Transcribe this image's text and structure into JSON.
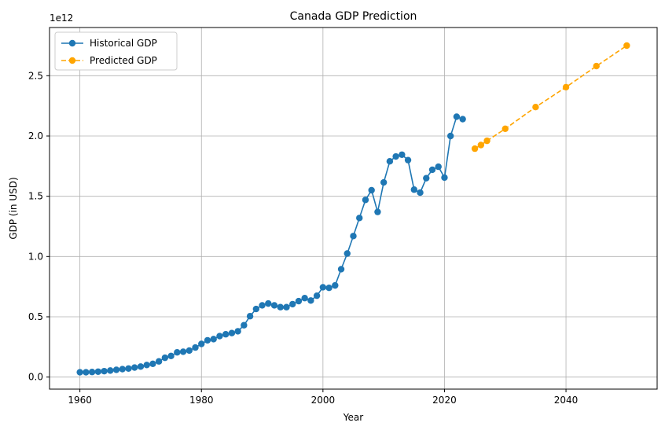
{
  "chart_data": {
    "type": "line",
    "title": "Canada GDP Prediction",
    "xlabel": "Year",
    "ylabel": "GDP (in USD)",
    "offset_label": "1e12",
    "xlim": [
      1955,
      2055
    ],
    "ylim": [
      -0.1,
      2.9
    ],
    "x_ticks": [
      1960,
      1980,
      2000,
      2020,
      2040
    ],
    "y_ticks": [
      0.0,
      0.5,
      1.0,
      1.5,
      2.0,
      2.5
    ],
    "y_tick_labels": [
      "0.0",
      "0.5",
      "1.0",
      "1.5",
      "2.0",
      "2.5"
    ],
    "grid": true,
    "legend_position": "upper-left",
    "series": [
      {
        "name": "Historical GDP",
        "color": "#1f77b4",
        "style": "solid",
        "x": [
          1960,
          1961,
          1962,
          1963,
          1964,
          1965,
          1966,
          1967,
          1968,
          1969,
          1970,
          1971,
          1972,
          1973,
          1974,
          1975,
          1976,
          1977,
          1978,
          1979,
          1980,
          1981,
          1982,
          1983,
          1984,
          1985,
          1986,
          1987,
          1988,
          1989,
          1990,
          1991,
          1992,
          1993,
          1994,
          1995,
          1996,
          1997,
          1998,
          1999,
          2000,
          2001,
          2002,
          2003,
          2004,
          2005,
          2006,
          2007,
          2008,
          2009,
          2010,
          2011,
          2012,
          2013,
          2014,
          2015,
          2016,
          2017,
          2018,
          2019,
          2020,
          2021,
          2022,
          2023
        ],
        "y": [
          0.04,
          0.04,
          0.042,
          0.045,
          0.049,
          0.054,
          0.06,
          0.066,
          0.071,
          0.079,
          0.087,
          0.1,
          0.11,
          0.13,
          0.16,
          0.175,
          0.205,
          0.21,
          0.22,
          0.245,
          0.275,
          0.305,
          0.315,
          0.34,
          0.355,
          0.365,
          0.38,
          0.43,
          0.505,
          0.565,
          0.595,
          0.61,
          0.595,
          0.58,
          0.58,
          0.605,
          0.63,
          0.655,
          0.635,
          0.675,
          0.745,
          0.74,
          0.76,
          0.895,
          1.025,
          1.17,
          1.32,
          1.47,
          1.55,
          1.37,
          1.615,
          1.79,
          1.83,
          1.845,
          1.8,
          1.555,
          1.53,
          1.65,
          1.72,
          1.745,
          1.655,
          2.0,
          2.16,
          2.14
        ]
      },
      {
        "name": "Predicted GDP",
        "color": "#ffa500",
        "style": "dashed",
        "x": [
          2025,
          2026,
          2027,
          2030,
          2035,
          2040,
          2045,
          2050
        ],
        "y": [
          1.895,
          1.925,
          1.96,
          2.06,
          2.24,
          2.405,
          2.58,
          2.75
        ]
      }
    ]
  }
}
